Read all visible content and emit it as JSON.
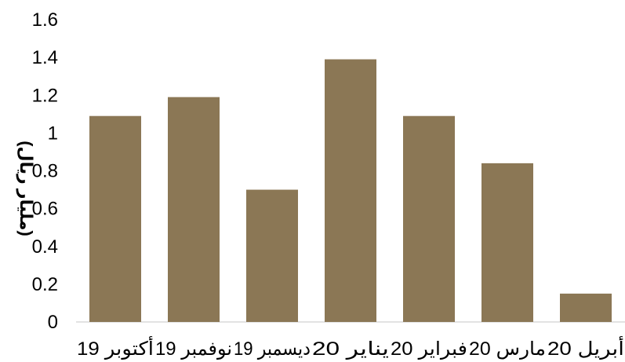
{
  "chart_data": {
    "type": "bar",
    "title": "",
    "xlabel": "",
    "ylabel": "(مليار ريال)",
    "categories": [
      "أكتوبر 19",
      "نوفمبر 19",
      "ديسمبر 19",
      "يناير 20",
      "فبراير 20",
      "مارس 20",
      "أبريل 20"
    ],
    "values": [
      1.09,
      1.19,
      0.7,
      1.39,
      1.09,
      0.84,
      0.15
    ],
    "ylim": [
      0,
      1.6
    ],
    "yticks": [
      "0",
      "0.2",
      "0.4",
      "0.6",
      "0.8",
      "1",
      "1.2",
      "1.4",
      "1.6"
    ],
    "grid": false,
    "legend": "none",
    "bar_color": "#8B7755"
  }
}
